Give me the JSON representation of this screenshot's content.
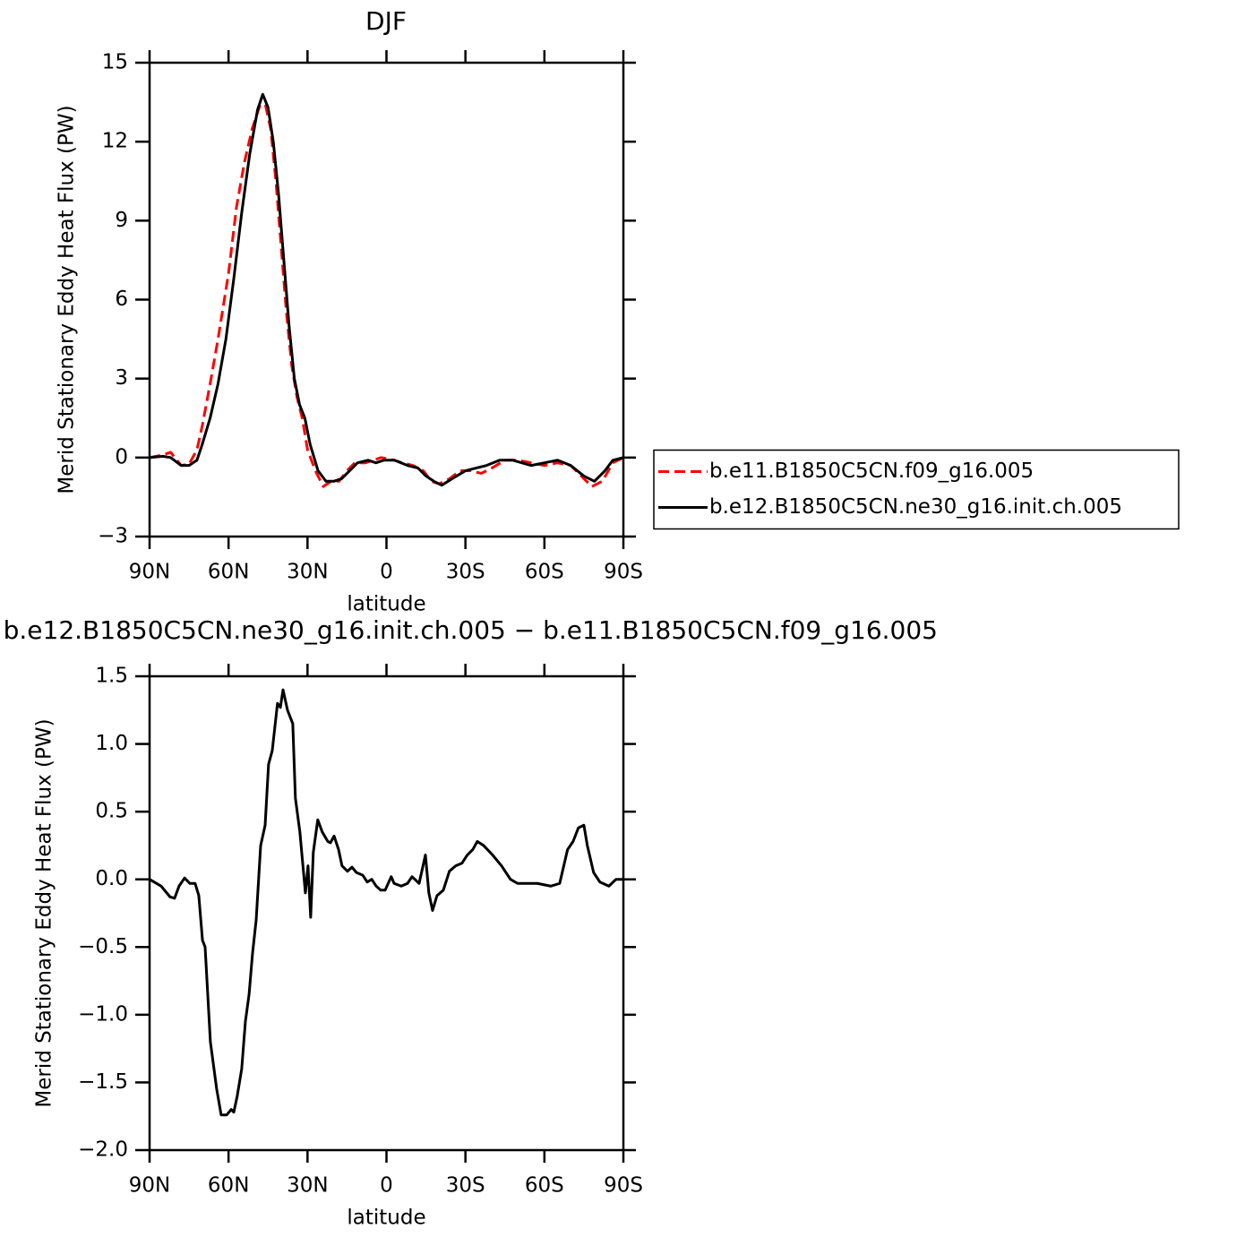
{
  "chart_data": [
    {
      "type": "line",
      "title": "DJF",
      "x_label": "latitude",
      "y_label": "Merid Stationary Eddy Heat Flux (PW)",
      "xlim": [
        90,
        -90
      ],
      "xticks": [
        {
          "value": 90,
          "label": "90N"
        },
        {
          "value": 60,
          "label": "60N"
        },
        {
          "value": 30,
          "label": "30N"
        },
        0,
        {
          "value": -30,
          "label": "30S"
        },
        {
          "value": -60,
          "label": "60S"
        },
        {
          "value": -90,
          "label": "90S"
        }
      ],
      "ylim": [
        -3,
        15
      ],
      "yticks": [
        {
          "value": -3,
          "label": "−3"
        },
        0,
        3,
        6,
        9,
        12,
        15
      ],
      "legend": "right",
      "series": [
        {
          "name": "b.e11.B1850C5CN.f09_g16.005",
          "color": "#ff0000",
          "dash": "dashed",
          "x": [
            90,
            85,
            82,
            78,
            75,
            72,
            70,
            67,
            64,
            60,
            57,
            54,
            51,
            48,
            46,
            44,
            42,
            40,
            38,
            36,
            34,
            32,
            30,
            27,
            24,
            21,
            18,
            15,
            12,
            8,
            5,
            2,
            -3,
            -6,
            -10,
            -14,
            -17,
            -20,
            -24,
            -28,
            -32,
            -36,
            -40,
            -45,
            -50,
            -55,
            -60,
            -65,
            -70,
            -75,
            -78,
            -82,
            -86,
            -90
          ],
          "values": [
            0,
            0.1,
            0.2,
            -0.3,
            -0.25,
            0.3,
            1.2,
            2.8,
            4.5,
            7,
            9.5,
            11.2,
            12.5,
            13.4,
            13.4,
            12.5,
            10.5,
            8,
            5.5,
            3.5,
            2.3,
            1.5,
            0.3,
            -0.5,
            -1.1,
            -0.9,
            -0.9,
            -0.5,
            -0.2,
            -0.2,
            -0.1,
            0,
            -0.1,
            -0.2,
            -0.3,
            -0.5,
            -0.9,
            -1.0,
            -0.8,
            -0.5,
            -0.5,
            -0.6,
            -0.4,
            -0.1,
            -0.1,
            -0.2,
            -0.3,
            -0.2,
            -0.3,
            -0.8,
            -1.1,
            -0.9,
            -0.2,
            0
          ]
        },
        {
          "name": "b.e12.B1850C5CN.ne30_g16.init.ch.005",
          "color": "#000000",
          "dash": "solid",
          "x": [
            90,
            85,
            82,
            78,
            75,
            72,
            70,
            67,
            64,
            61,
            58,
            55,
            52,
            49,
            47,
            45,
            43,
            41,
            39,
            37,
            35,
            33,
            31,
            29,
            26,
            23,
            20,
            17,
            14,
            11,
            7,
            4,
            1,
            -3,
            -8,
            -12,
            -15,
            -18,
            -21,
            -25,
            -30,
            -34,
            -38,
            -43,
            -48,
            -55,
            -60,
            -65,
            -70,
            -75,
            -79,
            -83,
            -86,
            -90
          ],
          "values": [
            0,
            0.05,
            0,
            -0.3,
            -0.3,
            -0.1,
            0.5,
            1.5,
            2.8,
            4.5,
            6.8,
            9.3,
            11.5,
            13.2,
            13.8,
            13.3,
            12,
            10,
            7.5,
            5,
            3,
            2,
            1.5,
            0.5,
            -0.5,
            -0.9,
            -0.9,
            -0.8,
            -0.5,
            -0.2,
            -0.1,
            -0.2,
            -0.1,
            -0.1,
            -0.3,
            -0.4,
            -0.7,
            -0.9,
            -1.05,
            -0.8,
            -0.5,
            -0.4,
            -0.3,
            -0.1,
            -0.1,
            -0.3,
            -0.2,
            -0.1,
            -0.3,
            -0.7,
            -0.9,
            -0.5,
            -0.1,
            0
          ]
        }
      ]
    },
    {
      "type": "line",
      "title": "b.e12.B1850C5CN.ne30_g16.init.ch.005 − b.e11.B1850C5CN.f09_g16.005",
      "x_label": "latitude",
      "y_label": "Merid Stationary Eddy Heat Flux (PW)",
      "xlim": [
        90,
        -90
      ],
      "xticks": [
        {
          "value": 90,
          "label": "90N"
        },
        {
          "value": 60,
          "label": "60N"
        },
        {
          "value": 30,
          "label": "30N"
        },
        0,
        {
          "value": -30,
          "label": "30S"
        },
        {
          "value": -60,
          "label": "60S"
        },
        {
          "value": -90,
          "label": "90S"
        }
      ],
      "ylim": [
        -2.0,
        1.5
      ],
      "yticks": [
        {
          "value": -2.0,
          "label": "−2.0"
        },
        {
          "value": -1.5,
          "label": "−1.5"
        },
        {
          "value": -1.0,
          "label": "−1.0"
        },
        {
          "value": -0.5,
          "label": "−0.5"
        },
        {
          "value": 0,
          "label": "0.0"
        },
        0.5,
        {
          "value": 1.0,
          "label": "1.0"
        },
        1.5
      ],
      "series": [
        {
          "color": "#000000",
          "dash": "solid",
          "x": [
            90,
            85.6,
            82.2,
            80.5,
            78.8,
            76.7,
            74.7,
            72.7,
            71.3,
            69.9,
            68.9,
            66.9,
            64.5,
            62.8,
            60.7,
            59,
            58,
            56.7,
            55,
            53.6,
            52.2,
            50.9,
            49.5,
            47.8,
            46.1,
            44.8,
            43.4,
            41.4,
            40.3,
            39.3,
            37.6,
            35.6,
            34.6,
            32.9,
            30.8,
            29.8,
            28.8,
            27.8,
            26.1,
            24.4,
            22.3,
            21.3,
            19.9,
            18.2,
            16.9,
            14.8,
            13.1,
            11.4,
            9,
            7.3,
            5.6,
            3.9,
            2.2,
            0.5,
            -1.8,
            -2.9,
            -5.6,
            -8,
            -9.7,
            -12.4,
            -14.8,
            -16.1,
            -17.5,
            -19.2,
            -21.6,
            -23.9,
            -26.3,
            -28.7,
            -30.7,
            -32.8,
            -34.5,
            -36.9,
            -40.3,
            -43.7,
            -47.1,
            -49.8,
            -57.3,
            -62.4,
            -65.8,
            -68.8,
            -70.9,
            -72.9,
            -75,
            -76.3,
            -78.7,
            -81.1,
            -84.5,
            -87.2,
            -90
          ],
          "values": [
            0,
            -0.05,
            -0.13,
            -0.14,
            -0.05,
            0.01,
            -0.03,
            -0.03,
            -0.12,
            -0.45,
            -0.5,
            -1.2,
            -1.55,
            -1.74,
            -1.74,
            -1.7,
            -1.72,
            -1.6,
            -1.4,
            -1.05,
            -0.85,
            -0.55,
            -0.3,
            0.25,
            0.4,
            0.85,
            0.95,
            1.3,
            1.27,
            1.4,
            1.25,
            1.15,
            0.6,
            0.35,
            -0.1,
            0.1,
            -0.28,
            0.2,
            0.44,
            0.35,
            0.28,
            0.27,
            0.32,
            0.22,
            0.1,
            0.06,
            0.09,
            0.05,
            0.03,
            -0.02,
            0,
            -0.05,
            -0.08,
            -0.08,
            0.02,
            -0.03,
            -0.05,
            -0.03,
            0.02,
            -0.03,
            0.18,
            -0.1,
            -0.23,
            -0.12,
            -0.08,
            0.06,
            0.1,
            0.12,
            0.18,
            0.22,
            0.28,
            0.25,
            0.18,
            0.1,
            0,
            -0.03,
            -0.03,
            -0.05,
            -0.03,
            0.22,
            0.28,
            0.38,
            0.4,
            0.25,
            0.05,
            -0.02,
            -0.05,
            0,
            0
          ]
        }
      ]
    }
  ]
}
